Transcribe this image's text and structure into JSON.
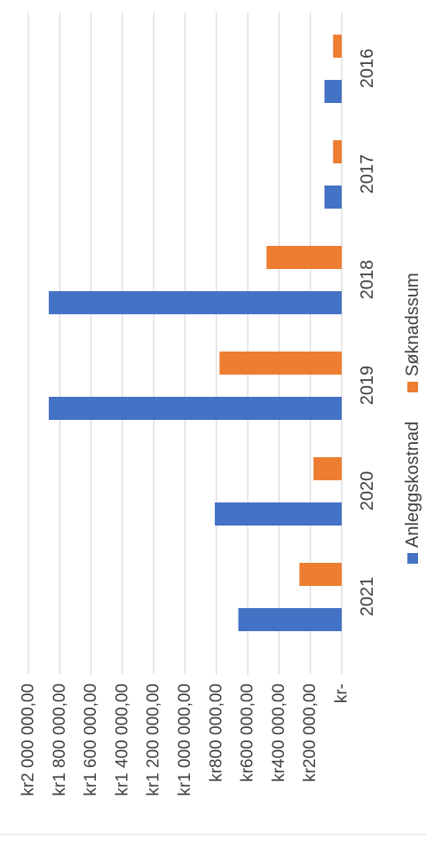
{
  "chart_data": {
    "type": "bar",
    "orientation": "rotated",
    "categories": [
      "2016",
      "2017",
      "2018",
      "2019",
      "2020",
      "2021"
    ],
    "series": [
      {
        "name": "Anleggskostnad",
        "color": "#4472C4",
        "values": [
          110000,
          110000,
          1870000,
          1870000,
          810000,
          660000
        ]
      },
      {
        "name": "Søknadssum",
        "color": "#ED7D31",
        "values": [
          55000,
          55000,
          480000,
          780000,
          180000,
          270000
        ]
      }
    ],
    "value_axis": {
      "min": 0,
      "max": 2000000,
      "tick_labels": [
        "kr-",
        "kr200 000,00",
        "kr400 000,00",
        "kr600 000,00",
        "kr800 000,00",
        "kr1 000 000,00",
        "kr1 200 000,00",
        "kr1 400 000,00",
        "kr1 600 000,00",
        "kr1 800 000,00",
        "kr2 000 000,00"
      ]
    },
    "grid": true,
    "legend_position": "bottom"
  }
}
